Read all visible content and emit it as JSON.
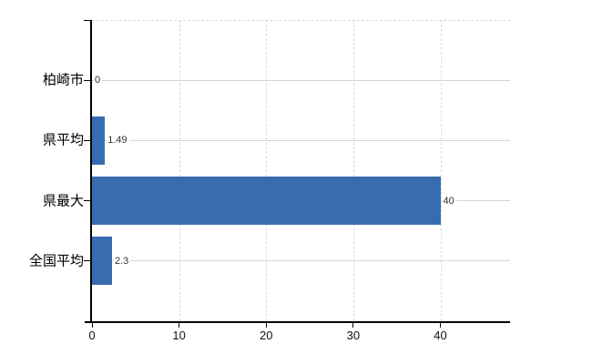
{
  "chart_data": {
    "type": "bar",
    "orientation": "horizontal",
    "title": "",
    "xlabel": "",
    "ylabel": "",
    "categories": [
      "柏崎市",
      "県平均",
      "県最大",
      "全国平均"
    ],
    "values": [
      0,
      1.49,
      40,
      2.3
    ],
    "value_labels": [
      "0",
      "1.49",
      "40",
      "2.3"
    ],
    "x_ticks": [
      0,
      10,
      20,
      30,
      40
    ],
    "xlim": [
      0,
      48
    ],
    "grid": true,
    "legend": false,
    "colors": {
      "bar": "#386CB0",
      "axis": "#000000",
      "grid_horizontal": "#d4d9d4",
      "grid_vertical": "#d9d9d9",
      "value_label": "#333333",
      "tick_label": "#111111"
    }
  }
}
